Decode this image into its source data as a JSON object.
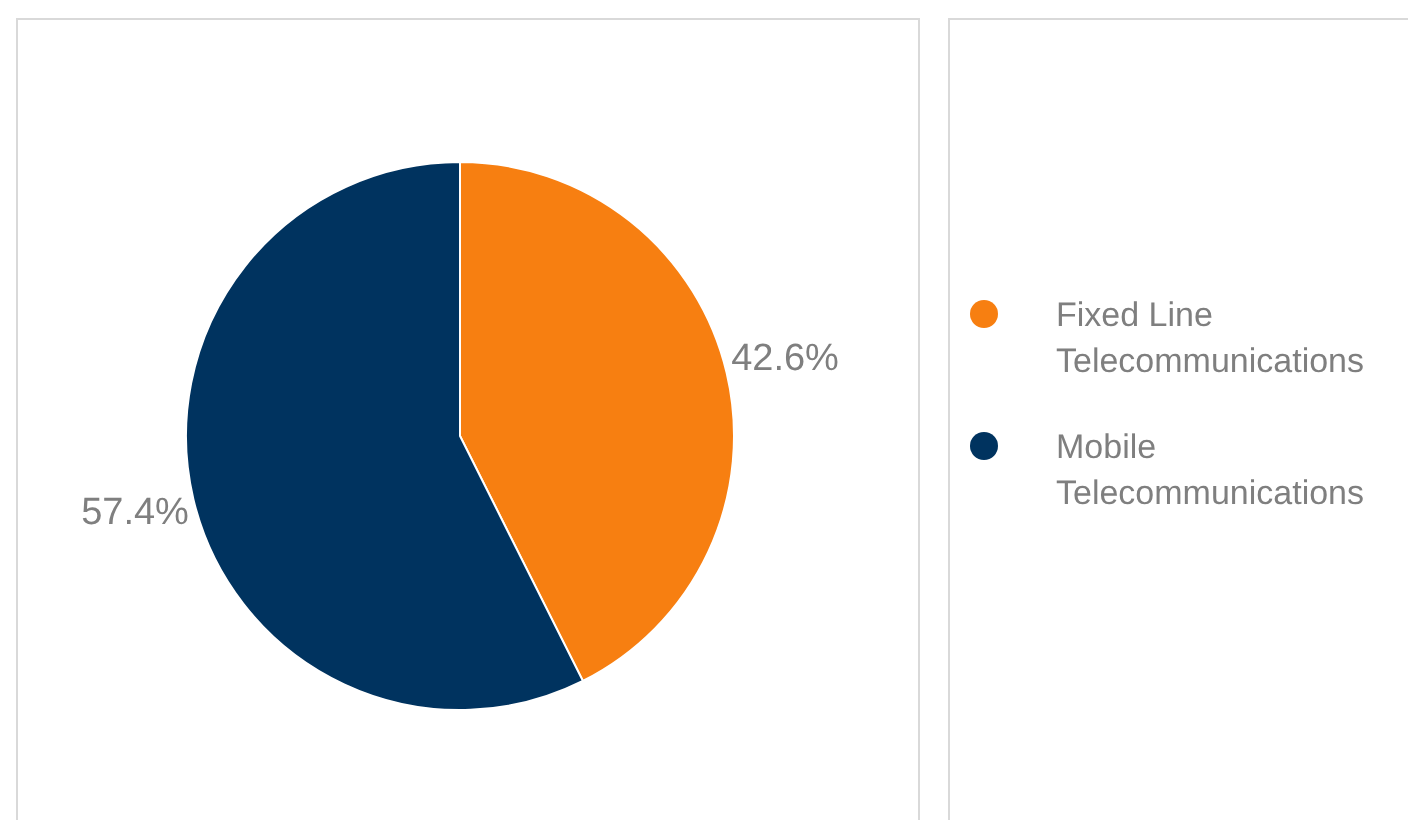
{
  "chart_data": {
    "type": "pie",
    "categories": [
      "Fixed Line Telecommunications",
      "Mobile Telecommunications"
    ],
    "values": [
      42.6,
      57.4
    ],
    "colors": [
      "#f77f11",
      "#00335f"
    ],
    "value_labels": [
      "42.6%",
      "57.4%"
    ],
    "legend": "right"
  }
}
